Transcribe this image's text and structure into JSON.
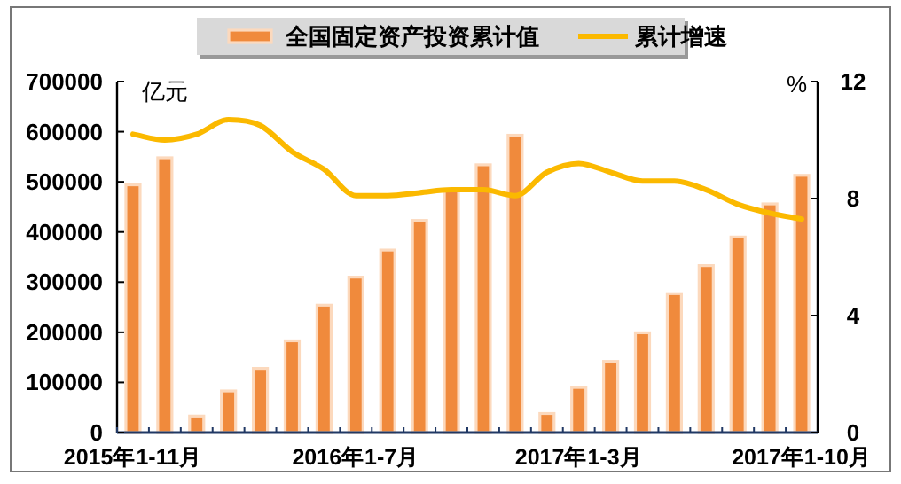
{
  "chart_data": {
    "type": "bar",
    "categories": [
      "2015年1-11月",
      null,
      null,
      null,
      null,
      null,
      null,
      "2016年1-7月",
      null,
      null,
      null,
      null,
      null,
      null,
      "2017年1-3月",
      null,
      null,
      null,
      null,
      null,
      null,
      "2017年1-10月"
    ],
    "series": [
      {
        "name": "全国固定资产投资累计值",
        "color": "#f08a3c",
        "values": [
          494000,
          548000,
          33000,
          83000,
          128000,
          183000,
          254000,
          310000,
          364000,
          423000,
          482000,
          534000,
          593000,
          38000,
          90000,
          142000,
          199000,
          277000,
          333000,
          390000,
          456000,
          513000
        ]
      },
      {
        "name": "累计增速",
        "type": "line",
        "axis": "y2",
        "color": "#fbb900",
        "values": [
          10.2,
          10.0,
          10.2,
          10.7,
          10.5,
          9.6,
          9.0,
          8.1,
          8.1,
          8.2,
          8.3,
          8.3,
          8.1,
          8.9,
          9.2,
          8.9,
          8.6,
          8.6,
          8.3,
          7.8,
          7.5,
          7.3
        ]
      }
    ],
    "ylabel": "亿元",
    "y2label": "%",
    "ylim": [
      0,
      700000
    ],
    "yticks": [
      0,
      100000,
      200000,
      300000,
      400000,
      500000,
      600000,
      700000
    ],
    "y2lim": [
      0,
      12
    ],
    "y2ticks": [
      0,
      4,
      8,
      12
    ],
    "legend": "top",
    "grid": false
  }
}
